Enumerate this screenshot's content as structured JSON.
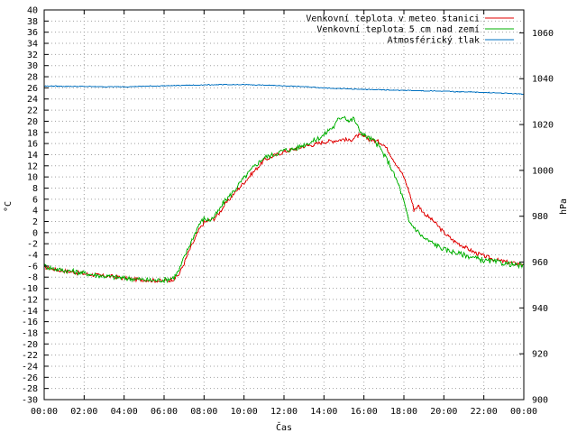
{
  "chart_data": {
    "type": "line",
    "xlabel": "Čas",
    "ylabel": "°C",
    "y2label": "hPa",
    "xlim": [
      0,
      24
    ],
    "ylim": [
      -30,
      40
    ],
    "y2lim": [
      900,
      1070
    ],
    "grid": true,
    "legend_position": "top-right",
    "x_ticks": [
      "00:00",
      "02:00",
      "04:00",
      "06:00",
      "08:00",
      "10:00",
      "12:00",
      "14:00",
      "16:00",
      "18:00",
      "20:00",
      "22:00",
      "00:00"
    ],
    "y_ticks": [
      -30,
      -28,
      -26,
      -24,
      -22,
      -20,
      -18,
      -16,
      -14,
      -12,
      -10,
      -8,
      -6,
      -4,
      -2,
      0,
      2,
      4,
      6,
      8,
      10,
      12,
      14,
      16,
      18,
      20,
      22,
      24,
      26,
      28,
      30,
      32,
      34,
      36,
      38,
      40
    ],
    "y2_ticks": [
      900,
      920,
      940,
      960,
      980,
      1000,
      1020,
      1040,
      1060
    ],
    "series": [
      {
        "name": "Venkovní teplota v meteo stanici",
        "color": "#e00000",
        "axis": "y",
        "x": [
          0,
          0.5,
          1,
          1.5,
          2,
          2.5,
          3,
          3.5,
          4,
          4.5,
          5,
          5.5,
          6,
          6.25,
          6.5,
          6.75,
          7,
          7.25,
          7.5,
          7.75,
          8,
          8.25,
          8.5,
          8.75,
          9,
          9.5,
          10,
          10.5,
          11,
          11.5,
          12,
          12.5,
          13,
          13.5,
          14,
          14.5,
          15,
          15.25,
          15.5,
          15.75,
          16,
          16.25,
          16.5,
          16.75,
          17,
          17.25,
          17.5,
          17.75,
          18,
          18.25,
          18.5,
          18.75,
          19,
          19.5,
          20,
          20.5,
          21,
          21.5,
          22,
          22.5,
          23,
          23.5,
          24
        ],
        "values": [
          -6.2,
          -6.6,
          -6.9,
          -7.1,
          -7.4,
          -7.6,
          -7.8,
          -7.9,
          -8.2,
          -8.4,
          -8.5,
          -8.6,
          -8.7,
          -8.6,
          -8.3,
          -7.5,
          -5.5,
          -3.3,
          -1.5,
          0.5,
          1.8,
          2.2,
          2.5,
          3.5,
          4.8,
          7.0,
          9.0,
          11.0,
          13.0,
          13.8,
          14.5,
          15.0,
          15.5,
          15.8,
          16.3,
          16.5,
          16.8,
          16.5,
          17.0,
          17.5,
          17.2,
          16.8,
          16.5,
          16.3,
          15.8,
          14.5,
          13.0,
          11.5,
          10.0,
          7.5,
          4.2,
          4.8,
          3.5,
          2.0,
          0.0,
          -1.5,
          -2.5,
          -3.5,
          -4.2,
          -4.8,
          -5.2,
          -5.5,
          -5.6
        ]
      },
      {
        "name": "Venkovní teplota 5 cm nad zemí",
        "color": "#00b000",
        "axis": "y",
        "x": [
          0,
          0.5,
          1,
          1.5,
          2,
          2.5,
          3,
          3.5,
          4,
          4.5,
          5,
          5.5,
          6,
          6.25,
          6.5,
          6.75,
          7,
          7.25,
          7.5,
          7.75,
          8,
          8.25,
          8.5,
          8.75,
          9,
          9.5,
          10,
          10.5,
          11,
          11.5,
          12,
          12.5,
          13,
          13.5,
          14,
          14.25,
          14.5,
          14.75,
          15,
          15.25,
          15.5,
          15.75,
          16,
          16.25,
          16.5,
          16.75,
          17,
          17.25,
          17.5,
          17.75,
          18,
          18.25,
          18.5,
          18.75,
          19,
          19.5,
          20,
          20.5,
          21,
          21.5,
          22,
          22.5,
          23,
          23.5,
          24
        ],
        "values": [
          -6.0,
          -6.5,
          -6.8,
          -7.0,
          -7.3,
          -7.6,
          -7.8,
          -8.0,
          -8.2,
          -8.3,
          -8.5,
          -8.6,
          -8.5,
          -8.3,
          -8.0,
          -6.8,
          -4.5,
          -2.5,
          -0.5,
          1.5,
          2.5,
          2.2,
          2.8,
          4.0,
          5.5,
          7.5,
          9.8,
          11.8,
          13.5,
          14.0,
          14.8,
          15.0,
          15.8,
          16.5,
          17.5,
          18.5,
          19.0,
          20.5,
          21.0,
          20.0,
          20.5,
          18.5,
          17.5,
          17.0,
          16.5,
          15.5,
          14.0,
          12.5,
          10.5,
          8.5,
          5.5,
          2.0,
          1.0,
          0.0,
          -1.0,
          -2.0,
          -3.0,
          -3.5,
          -4.0,
          -4.5,
          -5.0,
          -5.2,
          -5.5,
          -5.8,
          -6.0
        ]
      },
      {
        "name": "Atmosférický tlak",
        "color": "#0070c0",
        "axis": "y2",
        "x": [
          0,
          1,
          2,
          3,
          4,
          5,
          6,
          7,
          8,
          9,
          10,
          11,
          12,
          13,
          14,
          15,
          16,
          17,
          18,
          19,
          20,
          21,
          22,
          23,
          24
        ],
        "values": [
          1036.8,
          1036.7,
          1036.6,
          1036.5,
          1036.5,
          1036.7,
          1036.9,
          1037.1,
          1037.3,
          1037.4,
          1037.4,
          1037.2,
          1036.9,
          1036.5,
          1036.0,
          1035.6,
          1035.3,
          1035.1,
          1034.9,
          1034.7,
          1034.5,
          1034.3,
          1034.0,
          1033.7,
          1033.3
        ]
      }
    ]
  }
}
